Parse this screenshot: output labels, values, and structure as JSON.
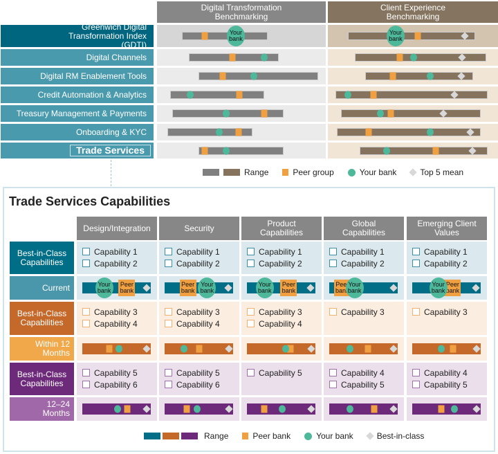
{
  "colors": {
    "peer": "#f0a040",
    "bank": "#4db89a",
    "diamond": "#d8d8d8",
    "teal": "#006e87",
    "orange": "#c4692a",
    "purple": "#6e2a7a"
  },
  "benchmark": {
    "columns": [
      "Digital Transformation Benchmarking",
      "Client Experience Benchmarking"
    ],
    "your_bank_label": "Your bank",
    "rows": [
      {
        "label": "Greenwich Digital Transformation Index (GDTI)",
        "dt": {
          "range": [
            14.8,
            65.6
          ],
          "peer": 28.3,
          "bank": 46.7
        },
        "cx": {
          "range": [
            11.8,
            86.6
          ],
          "bank": 39.8,
          "peer": 52.8,
          "top5": 80.5
        }
      },
      {
        "label": "Digital Channels",
        "dt": {
          "range": [
            18.9,
            72.1
          ],
          "peer": 44.7,
          "bank": 63.5
        },
        "cx": {
          "range": [
            15.9,
            93.1
          ],
          "peer": 42.3,
          "bank": 50.4,
          "top5": 78.9
        }
      },
      {
        "label": "Digital RM Enablement Tools",
        "dt": {
          "range": [
            24.6,
            95.5
          ],
          "peer": 38.9,
          "bank": 57.4
        },
        "cx": {
          "range": [
            22.0,
            85.4
          ],
          "peer": 38.2,
          "bank": 60.2,
          "top5": 78.5
        }
      },
      {
        "label": "Credit Automation & Analytics",
        "dt": {
          "range": [
            7.8,
            63.5
          ],
          "peer": 48.8,
          "bank": 19.7
        },
        "cx": {
          "range": [
            4.5,
            93.9
          ],
          "peer": 26.8,
          "bank": 11.8,
          "top5": 74.4
        }
      },
      {
        "label": "Treasury Management & Payments",
        "dt": {
          "range": [
            9.0,
            75.0
          ],
          "peer": 63.5,
          "bank": 41.0
        },
        "cx": {
          "range": [
            7.7,
            89.8
          ],
          "peer": 37.0,
          "bank": 30.9,
          "top5": 67.9
        }
      },
      {
        "label": "Onboarding & KYC",
        "dt": {
          "range": [
            6.1,
            56.6
          ],
          "peer": 48.4,
          "bank": 36.9
        },
        "cx": {
          "range": [
            5.3,
            89.8
          ],
          "peer": 24.0,
          "bank": 60.2,
          "top5": 83.7
        }
      },
      {
        "label": "Trade Services",
        "dt": {
          "range": [
            24.6,
            75.0
          ],
          "peer": 28.3,
          "bank": 41.0
        },
        "cx": {
          "range": [
            18.7,
            93.9
          ],
          "peer": 63.4,
          "bank": 34.6,
          "top5": 85.0
        }
      }
    ],
    "legend": {
      "range": "Range",
      "peer": "Peer group",
      "bank": "Your bank",
      "top5": "Top 5 mean"
    }
  },
  "trade": {
    "title": "Trade Services Capabilities",
    "columns": [
      "Design/Integration",
      "Security",
      "Product Capabilities",
      "Global Capabilities",
      "Emerging Client Values"
    ],
    "your_bank_label": "Your bank",
    "peer_bank_label": "Peer bank",
    "sections": [
      {
        "color": "teal",
        "label": "Best-in-Class Capabilities",
        "timeframe": "Current",
        "caps": [
          [
            "Capability 1",
            "Capability 2"
          ],
          [
            "Capability 1",
            "Capability 2"
          ],
          [
            "Capability 1",
            "Capability 2"
          ],
          [
            "Capability 1",
            "Capability 2"
          ],
          [
            "Capability 1",
            "Capability 2"
          ]
        ],
        "markers": [
          {
            "bank": 32,
            "peer": 65,
            "best": 94
          },
          {
            "bank": 62,
            "peer": 34,
            "best": 93
          },
          {
            "bank": 26,
            "peer": 61,
            "best": 93
          },
          {
            "bank": 37,
            "peer": 19,
            "best": 94
          },
          {
            "bank": 38,
            "peer": 59,
            "best": 93
          }
        ]
      },
      {
        "color": "orange",
        "label": "Best-in-Class Capabilities",
        "timeframe": "Within 12 Months",
        "caps": [
          [
            "Capability 3",
            "Capability 4"
          ],
          [
            "Capability 3",
            "Capability 4"
          ],
          [
            "Capability 3",
            "Capability 4"
          ],
          [
            "Capability 3"
          ],
          [
            "Capability 3"
          ]
        ],
        "markers": [
          {
            "bank": 54,
            "peer": 39,
            "best": 94
          },
          {
            "bank": 28,
            "peer": 51,
            "best": 94
          },
          {
            "bank": 57,
            "peer": 64,
            "best": 94
          },
          {
            "bank": 30,
            "peer": 57,
            "best": 94
          },
          {
            "bank": 42,
            "peer": 60,
            "best": 94
          }
        ]
      },
      {
        "color": "purple",
        "label": "Best-in-Class Capabilities",
        "timeframe": "12–24 Months",
        "caps": [
          [
            "Capability 5",
            "Capability 6"
          ],
          [
            "Capability 5",
            "Capability 6"
          ],
          [
            "Capability 5"
          ],
          [
            "Capability 4",
            "Capability 5"
          ],
          [
            "Capability 4",
            "Capability 5"
          ]
        ],
        "markers": [
          {
            "bank": 52,
            "peer": 66,
            "best": 94
          },
          {
            "bank": 47,
            "peer": 32,
            "best": 94
          },
          {
            "bank": 52,
            "peer": 25,
            "best": 94
          },
          {
            "bank": 30,
            "peer": 66,
            "best": 94
          },
          {
            "bank": 62,
            "peer": 42,
            "best": 94
          }
        ]
      }
    ],
    "legend": {
      "range": "Range",
      "peer": "Peer bank",
      "bank": "Your bank",
      "best": "Best-in-class"
    }
  }
}
